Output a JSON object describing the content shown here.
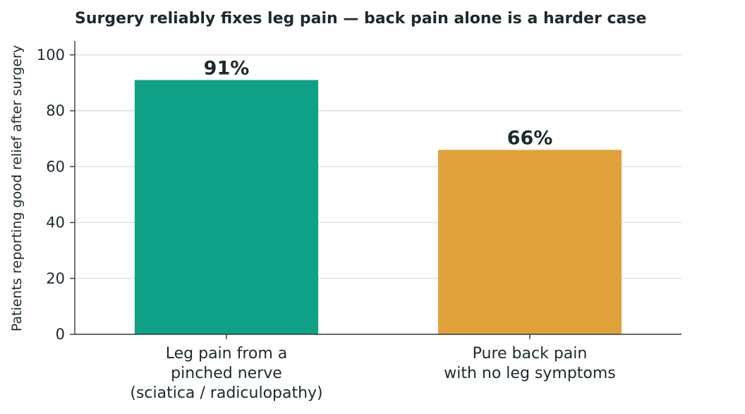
{
  "chart_data": {
    "type": "bar",
    "title": "Surgery reliably fixes leg pain — back pain alone is a harder case",
    "xlabel": "",
    "ylabel": "Patients reporting good relief after surgery",
    "ylim": [
      0,
      105
    ],
    "yticks": [
      0,
      20,
      40,
      60,
      80,
      100
    ],
    "grid": "horizontal",
    "categories": [
      [
        "Leg pain from a",
        "pinched nerve",
        "(sciatica / radiculopathy)"
      ],
      [
        "Pure back pain",
        "with no leg symptoms"
      ]
    ],
    "values": [
      91,
      66
    ],
    "data_labels": [
      "91%",
      "66%"
    ],
    "colors": [
      "#0fa185",
      "#e1a13b"
    ]
  }
}
